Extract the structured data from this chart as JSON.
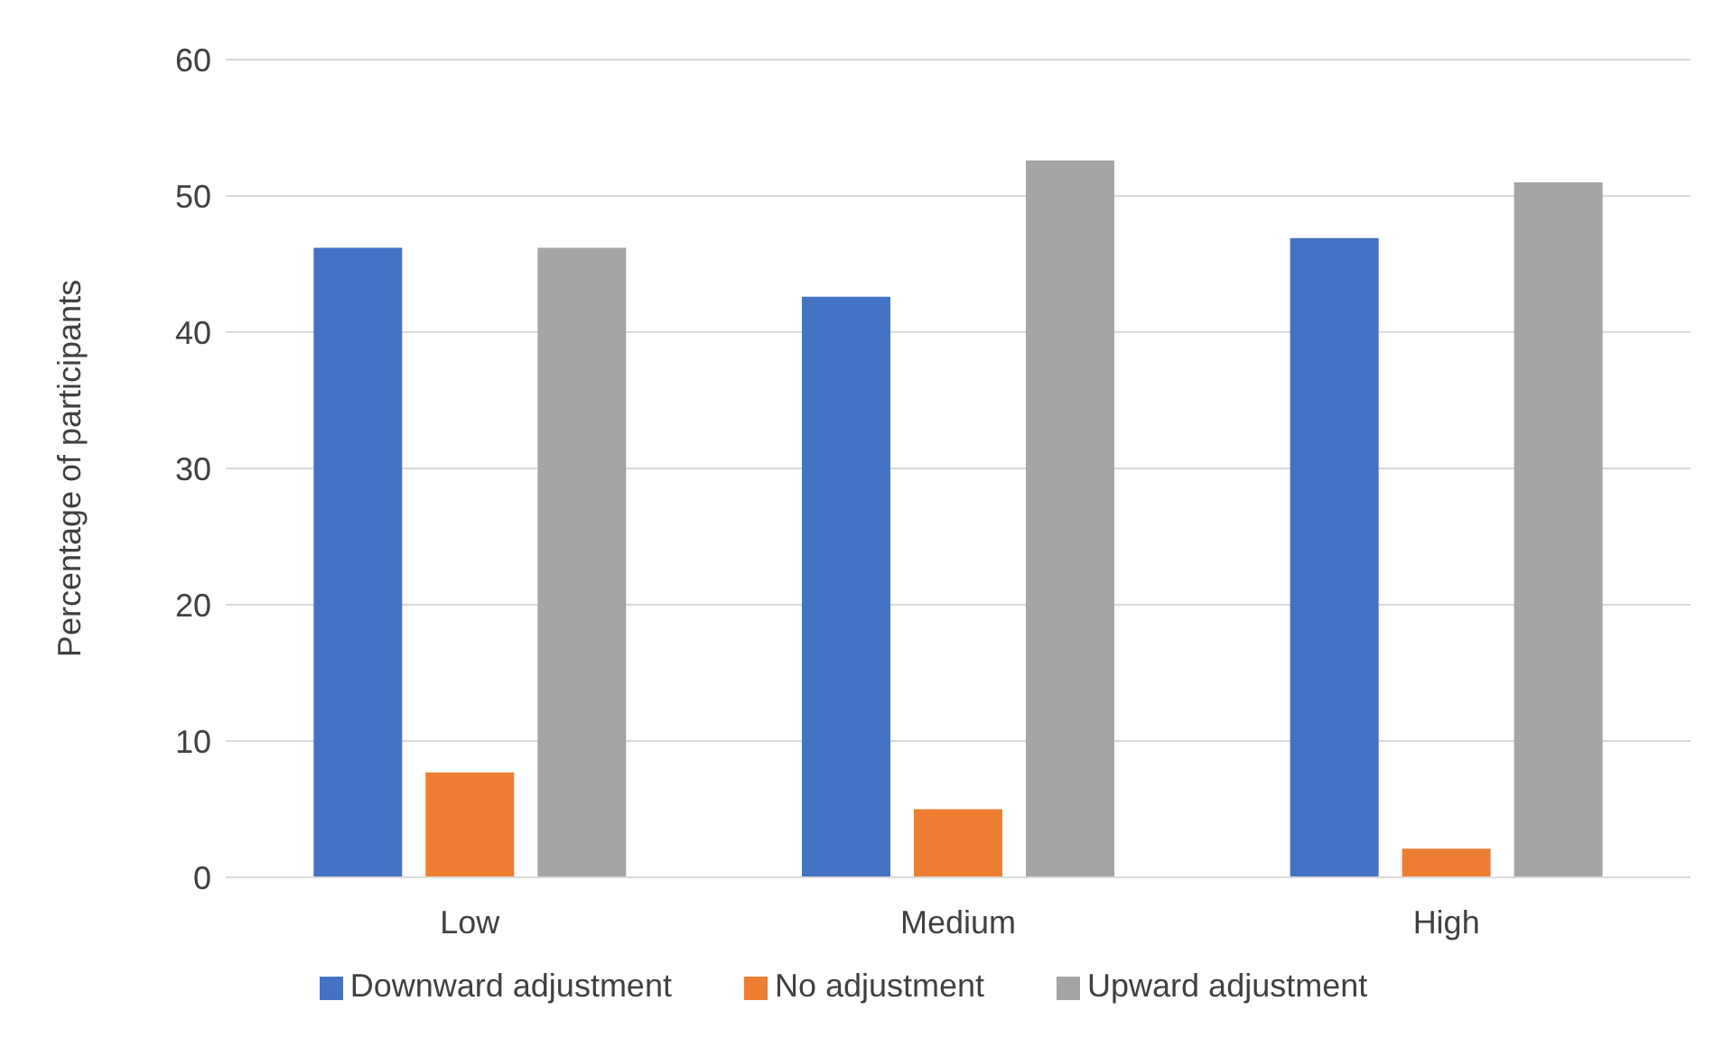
{
  "chart_data": {
    "type": "bar",
    "ylabel": "Percentage of participants",
    "categories": [
      "Low",
      "Medium",
      "High"
    ],
    "series": [
      {
        "name": "Downward adjustment",
        "color": "#4472c4",
        "values": [
          46.2,
          42.6,
          46.9
        ]
      },
      {
        "name": "No adjustment",
        "color": "#ed7d31",
        "values": [
          7.7,
          5.0,
          2.1
        ]
      },
      {
        "name": "Upward adjustment",
        "color": "#a5a5a5",
        "values": [
          46.2,
          52.6,
          51.0
        ]
      }
    ],
    "ylim": [
      0,
      60
    ],
    "yticks": [
      0,
      10,
      20,
      30,
      40,
      50,
      60
    ],
    "grid": "y",
    "legend": "bottom"
  }
}
